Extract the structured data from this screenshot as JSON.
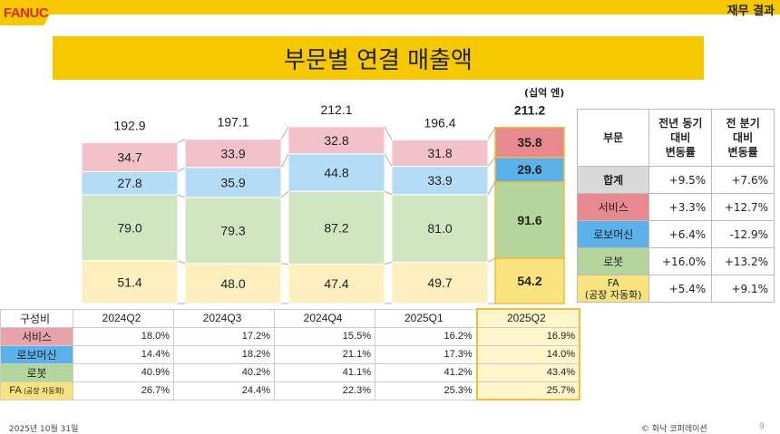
{
  "header": {
    "logo": "FANUC",
    "section": "재무 결과",
    "title": "부문별 연결 매출액"
  },
  "colors": {
    "brand_yellow": "#f5c800",
    "service": "#f2c2c8",
    "robomachine": "#b5dcf7",
    "robot": "#cfe6c0",
    "fa": "#fdf0be",
    "total": "#d9d9d9",
    "service_strong": "#e8898f",
    "robomachine_strong": "#5bb1ea",
    "robot_strong": "#b4d69c",
    "fa_strong": "#f9e37f"
  },
  "chart_data": {
    "type": "bar",
    "stacked": true,
    "unit": "(십억 엔)",
    "categories": [
      "2024Q2",
      "2024Q3",
      "2024Q4",
      "2025Q1",
      "2025Q2"
    ],
    "totals": [
      "192.9",
      "197.1",
      "212.1",
      "196.4",
      "211.2"
    ],
    "series": [
      {
        "name": "FA (공장 자동화)",
        "values": [
          51.4,
          48.0,
          47.4,
          49.7,
          54.2
        ]
      },
      {
        "name": "로봇",
        "values": [
          79.0,
          79.3,
          87.2,
          81.0,
          91.6
        ]
      },
      {
        "name": "로보머신",
        "values": [
          27.8,
          35.9,
          44.8,
          33.9,
          29.6
        ]
      },
      {
        "name": "서비스",
        "values": [
          34.7,
          33.9,
          32.8,
          31.8,
          35.8
        ]
      }
    ],
    "ylim": [
      0,
      220
    ],
    "grid": false
  },
  "change_table": {
    "headers": [
      "부문",
      "전년 동기\n대비\n변동률",
      "전 분기\n대비\n변동률"
    ],
    "rows": [
      {
        "segment": "합계",
        "yoy": "+9.5%",
        "qoq": "+7.6%"
      },
      {
        "segment": "서비스",
        "yoy": "+3.3%",
        "qoq": "+12.7%"
      },
      {
        "segment": "로보머신",
        "yoy": "+6.4%",
        "qoq": "-12.9%"
      },
      {
        "segment": "로봇",
        "yoy": "+16.0%",
        "qoq": "+13.2%"
      },
      {
        "segment": "FA\n(공장 자동화)",
        "yoy": "+5.4%",
        "qoq": "+9.1%"
      }
    ]
  },
  "composition_table": {
    "corner": "구성비",
    "columns": [
      "2024Q2",
      "2024Q3",
      "2024Q4",
      "2025Q1",
      "2025Q2"
    ],
    "rows": [
      {
        "label": "서비스",
        "values": [
          "18.0%",
          "17.2%",
          "15.5%",
          "16.2%",
          "16.9%"
        ]
      },
      {
        "label": "로보머신",
        "values": [
          "14.4%",
          "18.2%",
          "21.1%",
          "17.3%",
          "14.0%"
        ]
      },
      {
        "label": "로봇",
        "values": [
          "40.9%",
          "40.2%",
          "41.1%",
          "41.2%",
          "43.4%"
        ]
      },
      {
        "label": "FA",
        "label_sub": "(공장 자동화)",
        "values": [
          "26.7%",
          "24.4%",
          "22.3%",
          "25.3%",
          "25.7%"
        ]
      }
    ]
  },
  "footer": {
    "date": "2025년 10월 31일",
    "copyright": "© 화낙 코퍼레이션",
    "page": "9"
  }
}
